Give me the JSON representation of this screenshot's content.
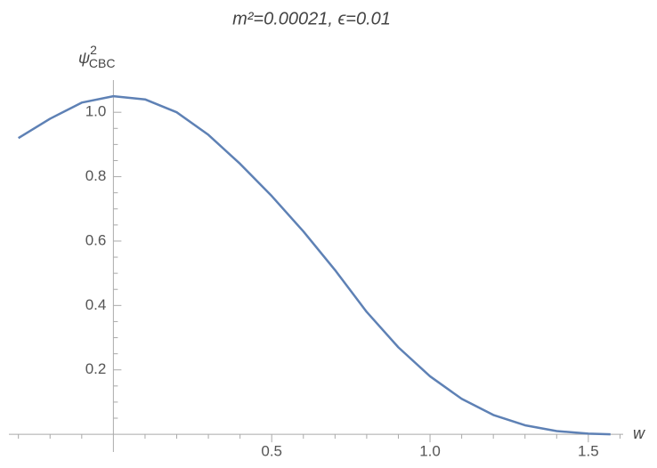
{
  "chart_data": {
    "type": "line",
    "title": "m²=0.00021,  ϵ=0.01",
    "y_label": {
      "base": "ψ",
      "sup": "2",
      "sub": "CBC"
    },
    "x_label": "w",
    "x": [
      -0.3,
      -0.2,
      -0.1,
      0,
      0.1,
      0.2,
      0.3,
      0.4,
      0.5,
      0.6,
      0.7,
      0.8,
      0.9,
      1.0,
      1.1,
      1.2,
      1.3,
      1.4,
      1.5,
      1.57
    ],
    "series": [
      {
        "name": "psi",
        "color": "#5e81b5",
        "values": [
          0.92,
          0.98,
          1.03,
          1.05,
          1.04,
          1.0,
          0.93,
          0.84,
          0.74,
          0.63,
          0.51,
          0.38,
          0.27,
          0.18,
          0.11,
          0.06,
          0.028,
          0.01,
          0.002,
          0
        ]
      }
    ],
    "xlim": [
      -0.33,
      1.61
    ],
    "ylim": [
      -0.055,
      1.1
    ],
    "xticks": [
      0.5,
      {
        "value": 1,
        "label": "1.0"
      },
      1.5
    ],
    "yticks": [
      0.2,
      0.4,
      0.6,
      0.8,
      {
        "value": 1,
        "label": "1.0"
      }
    ],
    "minor_xticks": [
      -0.3,
      -0.2,
      -0.1,
      0.1,
      0.2,
      0.3,
      0.4,
      0.6,
      0.7,
      0.8,
      0.9,
      1.1,
      1.2,
      1.3,
      1.4,
      1.6
    ],
    "minor_yticks": [
      0.05,
      0.1,
      0.15,
      0.25,
      0.3,
      0.35,
      0.45,
      0.5,
      0.55,
      0.65,
      0.7,
      0.75,
      0.85,
      0.9,
      0.95,
      1.05
    ]
  }
}
